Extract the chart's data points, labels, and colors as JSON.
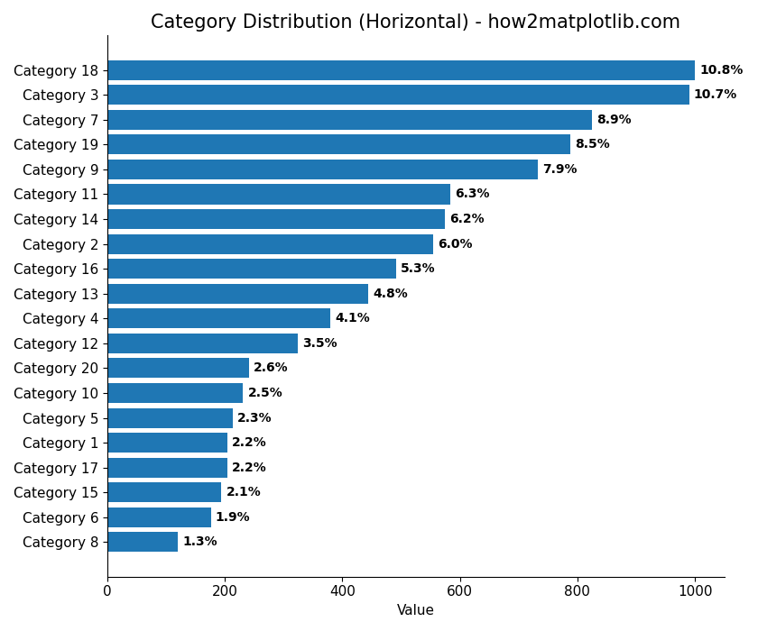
{
  "title": "Category Distribution (Horizontal) - how2matplotlib.com",
  "xlabel": "Value",
  "categories": [
    "Category 18",
    "Category 3",
    "Category 7",
    "Category 19",
    "Category 9",
    "Category 11",
    "Category 14",
    "Category 2",
    "Category 16",
    "Category 13",
    "Category 4",
    "Category 12",
    "Category 20",
    "Category 10",
    "Category 5",
    "Category 1",
    "Category 17",
    "Category 15",
    "Category 6",
    "Category 8"
  ],
  "values": [
    1000,
    990,
    825,
    788,
    732,
    583,
    574,
    555,
    491,
    444,
    380,
    324,
    241,
    231,
    213,
    204,
    204,
    194,
    176,
    120
  ],
  "percentages": [
    "10.8%",
    "10.7%",
    "8.9%",
    "8.5%",
    "7.9%",
    "6.3%",
    "6.2%",
    "6.0%",
    "5.3%",
    "4.8%",
    "4.1%",
    "3.5%",
    "2.6%",
    "2.5%",
    "2.3%",
    "2.2%",
    "2.2%",
    "2.1%",
    "1.9%",
    "1.3%"
  ],
  "bar_color": "#1f77b4",
  "xlim": [
    0,
    1050
  ],
  "title_fontsize": 15,
  "label_fontsize": 11,
  "tick_fontsize": 11,
  "pct_fontsize": 10,
  "figsize": [
    8.4,
    7.0
  ],
  "dpi": 100
}
